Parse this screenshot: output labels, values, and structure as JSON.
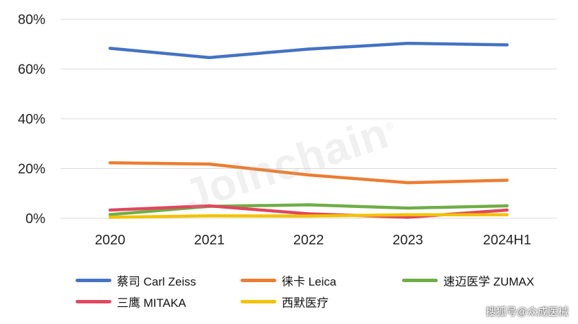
{
  "chart_data": {
    "type": "line",
    "categories": [
      "2020",
      "2021",
      "2022",
      "2023",
      "2024H1"
    ],
    "ylim": [
      0,
      80
    ],
    "yticks": [
      "0%",
      "20%",
      "40%",
      "60%",
      "80%"
    ],
    "grid": true,
    "legend_position": "bottom",
    "series": [
      {
        "name": "蔡司 Carl Zeiss",
        "color": "#4472C4",
        "values": [
          68.3,
          64.6,
          68.0,
          70.3,
          69.7
        ]
      },
      {
        "name": "徕卡 Leica",
        "color": "#ED7D31",
        "values": [
          22.3,
          21.8,
          17.4,
          14.3,
          15.3
        ]
      },
      {
        "name": "速迈医学 ZUMAX",
        "color": "#70AD47",
        "values": [
          1.5,
          4.8,
          5.4,
          4.1,
          5.0
        ]
      },
      {
        "name": "三鹰 MITAKA",
        "color": "#E0475E",
        "values": [
          3.3,
          5.0,
          1.8,
          0.4,
          3.3
        ]
      },
      {
        "name": "西默医疗",
        "color": "#F2C200",
        "values": [
          0.4,
          1.0,
          0.9,
          1.4,
          1.4
        ]
      }
    ]
  },
  "watermark": {
    "text": "Joinchain",
    "mark": "®"
  },
  "source_label": "搜狐号@众成医械"
}
